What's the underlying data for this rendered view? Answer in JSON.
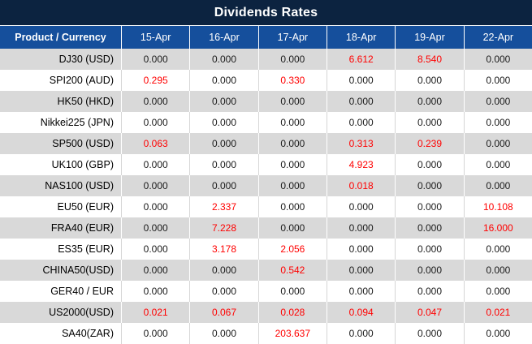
{
  "title": "Dividends Rates",
  "colors": {
    "title_bar_bg": "#0c2340",
    "header_row_bg": "#154f9c",
    "odd_row_bg": "#d9d9d9",
    "even_row_bg": "#ffffff",
    "value_text": "#1b1b1b",
    "highlight_red": "#ff0000",
    "header_text": "#ffffff"
  },
  "chart_data": {
    "type": "table",
    "title": "Dividends Rates",
    "columns": [
      "Product / Currency",
      "15-Apr",
      "16-Apr",
      "17-Apr",
      "18-Apr",
      "19-Apr",
      "22-Apr"
    ],
    "rows": [
      {
        "label": "DJ30 (USD)",
        "values": [
          "0.000",
          "0.000",
          "0.000",
          "6.612",
          "8.540",
          "0.000"
        ],
        "red": [
          false,
          false,
          false,
          true,
          true,
          false
        ]
      },
      {
        "label": "SPI200 (AUD)",
        "values": [
          "0.295",
          "0.000",
          "0.330",
          "0.000",
          "0.000",
          "0.000"
        ],
        "red": [
          true,
          false,
          true,
          false,
          false,
          false
        ]
      },
      {
        "label": "HK50 (HKD)",
        "values": [
          "0.000",
          "0.000",
          "0.000",
          "0.000",
          "0.000",
          "0.000"
        ],
        "red": [
          false,
          false,
          false,
          false,
          false,
          false
        ]
      },
      {
        "label": "Nikkei225 (JPN)",
        "values": [
          "0.000",
          "0.000",
          "0.000",
          "0.000",
          "0.000",
          "0.000"
        ],
        "red": [
          false,
          false,
          false,
          false,
          false,
          false
        ]
      },
      {
        "label": "SP500 (USD)",
        "values": [
          "0.063",
          "0.000",
          "0.000",
          "0.313",
          "0.239",
          "0.000"
        ],
        "red": [
          true,
          false,
          false,
          true,
          true,
          false
        ]
      },
      {
        "label": "UK100 (GBP)",
        "values": [
          "0.000",
          "0.000",
          "0.000",
          "4.923",
          "0.000",
          "0.000"
        ],
        "red": [
          false,
          false,
          false,
          true,
          false,
          false
        ]
      },
      {
        "label": "NAS100 (USD)",
        "values": [
          "0.000",
          "0.000",
          "0.000",
          "0.018",
          "0.000",
          "0.000"
        ],
        "red": [
          false,
          false,
          false,
          true,
          false,
          false
        ]
      },
      {
        "label": "EU50 (EUR)",
        "values": [
          "0.000",
          "2.337",
          "0.000",
          "0.000",
          "0.000",
          "10.108"
        ],
        "red": [
          false,
          true,
          false,
          false,
          false,
          true
        ]
      },
      {
        "label": "FRA40 (EUR)",
        "values": [
          "0.000",
          "7.228",
          "0.000",
          "0.000",
          "0.000",
          "16.000"
        ],
        "red": [
          false,
          true,
          false,
          false,
          false,
          true
        ]
      },
      {
        "label": "ES35 (EUR)",
        "values": [
          "0.000",
          "3.178",
          "2.056",
          "0.000",
          "0.000",
          "0.000"
        ],
        "red": [
          false,
          true,
          true,
          false,
          false,
          false
        ]
      },
      {
        "label": "CHINA50(USD)",
        "values": [
          "0.000",
          "0.000",
          "0.542",
          "0.000",
          "0.000",
          "0.000"
        ],
        "red": [
          false,
          false,
          true,
          false,
          false,
          false
        ]
      },
      {
        "label": "GER40 / EUR",
        "values": [
          "0.000",
          "0.000",
          "0.000",
          "0.000",
          "0.000",
          "0.000"
        ],
        "red": [
          false,
          false,
          false,
          false,
          false,
          false
        ]
      },
      {
        "label": "US2000(USD)",
        "values": [
          "0.021",
          "0.067",
          "0.028",
          "0.094",
          "0.047",
          "0.021"
        ],
        "red": [
          true,
          true,
          true,
          true,
          true,
          true
        ]
      },
      {
        "label": "SA40(ZAR)",
        "values": [
          "0.000",
          "0.000",
          "203.637",
          "0.000",
          "0.000",
          "0.000"
        ],
        "red": [
          false,
          false,
          true,
          false,
          false,
          false
        ]
      }
    ]
  }
}
